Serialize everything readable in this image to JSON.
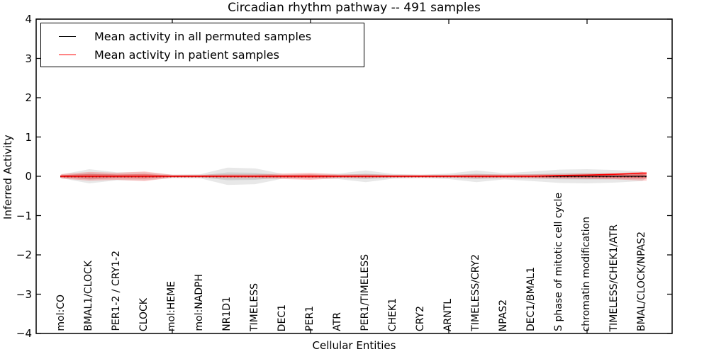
{
  "chart_data": {
    "type": "area",
    "title": "Circadian rhythm pathway -- 491 samples",
    "xlabel": "Cellular Entities",
    "ylabel": "Inferred Activity",
    "ylim": [
      -4,
      4
    ],
    "ytick_labels": [
      "4",
      "3",
      "2",
      "1",
      "0",
      "−1",
      "−2",
      "−3",
      "−4"
    ],
    "grid": false,
    "legend_position": "upper left",
    "categories": [
      "mol:CO",
      "BMAL1/CLOCK",
      "PER1-2 / CRY1-2",
      "CLOCK",
      "mol:HEME",
      "mol:NADPH",
      "NR1D1",
      "TIMELESS",
      "DEC1",
      "PER1",
      "ATR",
      "PER1/TIMELESS",
      "CHEK1",
      "CRY2",
      "ARNTL",
      "TIMELESS/CRY2",
      "NPAS2",
      "DEC1/BMAL1",
      "S phase of mitotic cell cycle",
      "chromatin modification",
      "TIMELESS/CHEK1/ATR",
      "BMAL/CLOCK/NPAS2"
    ],
    "series": [
      {
        "name": "Mean activity in all permuted samples",
        "color": "#000000",
        "values": [
          0,
          0,
          0,
          0,
          0,
          0,
          0,
          0,
          0,
          0,
          0,
          0,
          0,
          0,
          0,
          0,
          0,
          0,
          0,
          0,
          0,
          0
        ]
      },
      {
        "name": "Mean activity in patient samples",
        "color": "#ff0000",
        "values": [
          0,
          0,
          0,
          0,
          0,
          0,
          0,
          0,
          0,
          0,
          0,
          0,
          0,
          0,
          0,
          0,
          0,
          0,
          0.02,
          0.03,
          0.05,
          0.08
        ]
      }
    ],
    "spread_permuted": {
      "name": "permuted-activity-spread",
      "color": "#808080",
      "half_widths": [
        0.05,
        0.18,
        0.1,
        0.1,
        0.04,
        0.05,
        0.22,
        0.2,
        0.06,
        0.06,
        0.07,
        0.15,
        0.06,
        0.04,
        0.07,
        0.15,
        0.08,
        0.12,
        0.17,
        0.18,
        0.16,
        0.12
      ]
    },
    "spread_patient": {
      "name": "patient-activity-spread",
      "color": "#ff0000",
      "half_widths": [
        0.06,
        0.11,
        0.09,
        0.12,
        0.04,
        0.04,
        0.05,
        0.05,
        0.07,
        0.09,
        0.05,
        0.05,
        0.04,
        0.04,
        0.04,
        0.05,
        0.05,
        0.05,
        0.06,
        0.07,
        0.08,
        0.11
      ]
    },
    "zero_line": {
      "value": 0,
      "style": "dotted",
      "color": "#000000"
    }
  },
  "legend": {
    "items": [
      {
        "label": "Mean activity in all permuted samples",
        "color": "#000000"
      },
      {
        "label": "Mean activity in patient samples",
        "color": "#ff0000"
      }
    ]
  }
}
